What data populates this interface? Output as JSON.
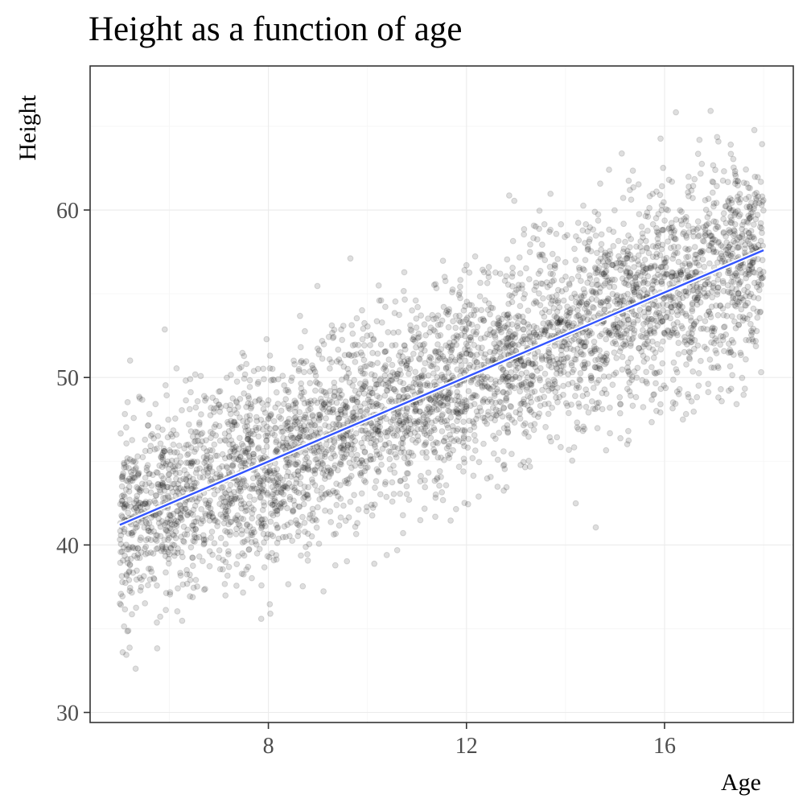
{
  "chart_data": {
    "type": "scatter",
    "title": "Height as a function of age",
    "xlabel": "Age",
    "ylabel": "Height",
    "xlim": [
      4.4,
      18.6
    ],
    "ylim": [
      29.4,
      68.6
    ],
    "x_ticks": [
      8,
      12,
      16
    ],
    "y_ticks": [
      30,
      40,
      50,
      60
    ],
    "x_tick_labels": [
      "8",
      "12",
      "16"
    ],
    "y_tick_labels": [
      "30",
      "40",
      "50",
      "60"
    ],
    "grid": true,
    "legend": "none",
    "points": {
      "x_range": [
        5,
        18
      ],
      "height_at_age_5": 41.2,
      "height_at_age_18": 57.6,
      "residual_sd": 3.0,
      "color": "#000000",
      "alpha": 0.13
    },
    "regression_line": {
      "x": [
        5,
        18
      ],
      "y": [
        41.2,
        57.6
      ],
      "color": "#3355ff"
    },
    "colors": {
      "points": "#000000",
      "fit_line": "#3355ff",
      "panel_border": "#333333",
      "grid": "#ebebeb"
    }
  }
}
